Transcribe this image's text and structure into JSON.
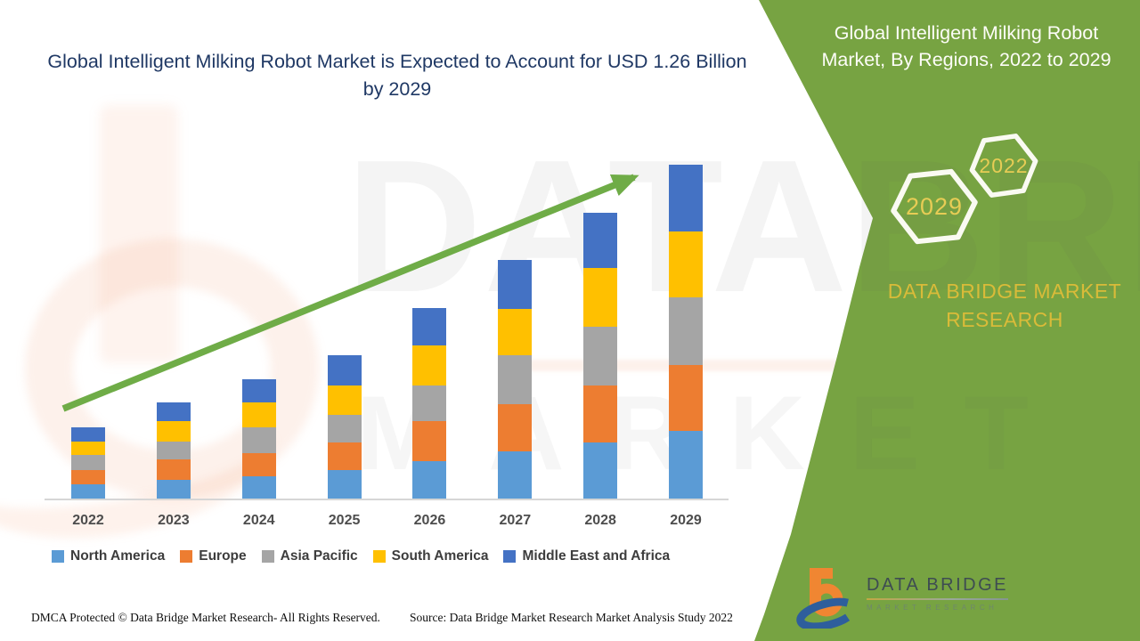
{
  "header": {
    "main_title": "Global Intelligent Milking Robot Market is Expected to Account for USD 1.26 Billion by 2029",
    "title_color": "#1F3864"
  },
  "sidebar": {
    "title": "Global Intelligent Milking Robot Market, By Regions, 2022 to 2029",
    "bg_color": "#77A342",
    "hex_small_year": "2022",
    "hex_large_year": "2029",
    "hex_year_color": "#E7CC55",
    "brand_text": "DATA BRIDGE MARKET RESEARCH",
    "brand_text_color": "#D9BB39"
  },
  "watermark": {
    "line1": "DATABRIDGE",
    "line2": "MARKET RESEARCH"
  },
  "logo": {
    "name": "DATA BRIDGE",
    "subtext": "MARKET RESEARCH",
    "b_color": "#F08632",
    "swoosh_color": "#2E5E9C"
  },
  "footer": {
    "left": "DMCA Protected © Data Bridge Market Research- All Rights Reserved.",
    "right": "Source: Data Bridge Market Research Market Analysis Study 2022"
  },
  "chart_data": {
    "type": "bar",
    "subtype": "stacked-vertical",
    "title": "Global Intelligent Milking Robot Market, By Regions, 2022 to 2029",
    "unit": "USD Billion",
    "categories": [
      "2022",
      "2023",
      "2024",
      "2025",
      "2026",
      "2027",
      "2028",
      "2029"
    ],
    "series": [
      {
        "name": "North America",
        "color": "#5B9BD5",
        "values": [
          0.054,
          0.071,
          0.084,
          0.106,
          0.14,
          0.177,
          0.212,
          0.254
        ]
      },
      {
        "name": "Europe",
        "color": "#ED7D31",
        "values": [
          0.054,
          0.078,
          0.087,
          0.107,
          0.151,
          0.181,
          0.215,
          0.252
        ]
      },
      {
        "name": "Asia Pacific",
        "color": "#A5A5A5",
        "values": [
          0.058,
          0.067,
          0.098,
          0.104,
          0.137,
          0.185,
          0.221,
          0.254
        ]
      },
      {
        "name": "South America",
        "color": "#FFC000",
        "values": [
          0.05,
          0.076,
          0.093,
          0.109,
          0.149,
          0.174,
          0.222,
          0.249
        ]
      },
      {
        "name": "Middle East and Africa",
        "color": "#4472C4",
        "values": [
          0.053,
          0.07,
          0.09,
          0.114,
          0.144,
          0.185,
          0.21,
          0.251
        ]
      }
    ],
    "totals_by_year": [
      0.27,
      0.36,
      0.45,
      0.54,
      0.72,
      0.9,
      1.08,
      1.26
    ],
    "final_total_label": "USD 1.26 Billion by 2029",
    "trend_arrow": true,
    "trend_arrow_color": "#6FAC47",
    "axis_baseline_color": "#d6d6d6",
    "legend_position": "bottom",
    "y_axis_visible": false,
    "grid": false
  }
}
